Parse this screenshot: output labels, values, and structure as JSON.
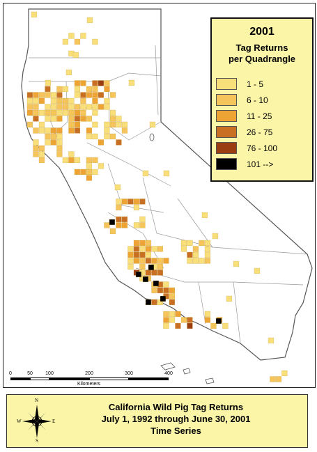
{
  "legend": {
    "year": "2001",
    "title_line1": "Tag Returns",
    "title_line2": "per Quadrangle",
    "classes": [
      {
        "label": "1 - 5",
        "color": "#f9df7a"
      },
      {
        "label": "6 - 10",
        "color": "#f5c45a"
      },
      {
        "label": "11 - 25",
        "color": "#eea434"
      },
      {
        "label": "26 - 75",
        "color": "#c86f23"
      },
      {
        "label": "76 - 100",
        "color": "#9a3d10"
      },
      {
        "label": "101 -->",
        "color": "#000000"
      }
    ]
  },
  "scale": {
    "ticks": [
      "0",
      "50",
      "100",
      "200",
      "300",
      "400"
    ],
    "unit": "Kilometers"
  },
  "title": {
    "line1": "California Wild Pig Tag Returns",
    "line2": "July 1, 1992 through June 30, 2001",
    "line3": "Time Series"
  },
  "compass": {
    "n": "N",
    "s": "S",
    "e": "E",
    "w": "W"
  },
  "colors": {
    "land": "#ffffff",
    "outline": "#555555",
    "county_lines": "#9a9a9a",
    "legend_bg": "#fbf5a8",
    "title_bg": "#fbf5a8"
  }
}
